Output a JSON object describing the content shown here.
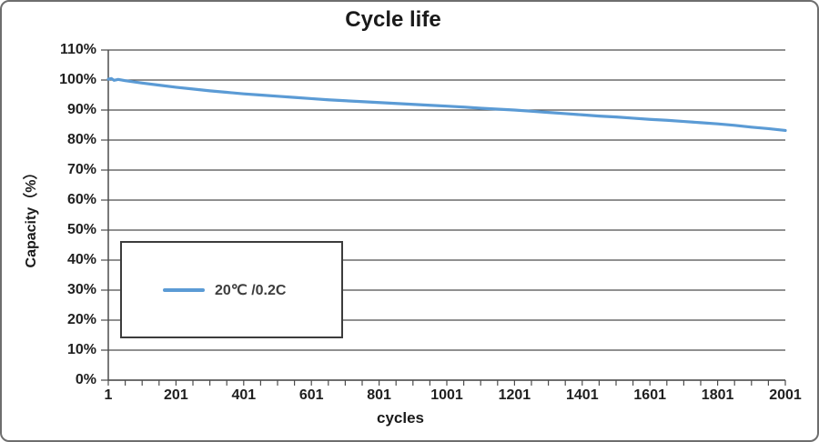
{
  "window": {
    "background": "#ffffff",
    "border_color": "#6e6e6e"
  },
  "chart_data": {
    "type": "line",
    "title": "Cycle life",
    "xlabel": "cycles",
    "ylabel": "Capacity（%）",
    "xlim": [
      1,
      2001
    ],
    "ylim": [
      0,
      110
    ],
    "x_tick_values": [
      1,
      201,
      401,
      601,
      801,
      1001,
      1201,
      1401,
      1601,
      1801,
      2001
    ],
    "x_tick_labels": [
      "1",
      "201",
      "401",
      "601",
      "801",
      "1001",
      "1201",
      "1401",
      "1601",
      "1801",
      "2001"
    ],
    "x_minor_tick_step": 50,
    "y_tick_values": [
      0,
      10,
      20,
      30,
      40,
      50,
      60,
      70,
      80,
      90,
      100,
      110
    ],
    "y_tick_labels": [
      "0%",
      "10%",
      "20%",
      "30%",
      "40%",
      "50%",
      "60%",
      "70%",
      "80%",
      "90%",
      "100%",
      "110%"
    ],
    "grid": "horizontal",
    "grid_color": "#4d4d4d",
    "axis_color": "#4d4d4d",
    "text_color": "#1f1f1f",
    "legend": {
      "position": "inside-left",
      "border_color": "#3c3c3c",
      "background": "#ffffff"
    },
    "series": [
      {
        "name": "20℃ /0.2C",
        "color": "#5B9BD5",
        "points": [
          [
            1,
            100.3
          ],
          [
            10,
            100.5
          ],
          [
            18,
            99.9
          ],
          [
            30,
            100.2
          ],
          [
            51,
            99.8
          ],
          [
            101,
            99.0
          ],
          [
            151,
            98.3
          ],
          [
            201,
            97.6
          ],
          [
            251,
            97.0
          ],
          [
            301,
            96.4
          ],
          [
            351,
            95.9
          ],
          [
            401,
            95.4
          ],
          [
            451,
            95.0
          ],
          [
            501,
            94.6
          ],
          [
            551,
            94.2
          ],
          [
            601,
            93.8
          ],
          [
            651,
            93.4
          ],
          [
            701,
            93.1
          ],
          [
            751,
            92.8
          ],
          [
            801,
            92.5
          ],
          [
            851,
            92.2
          ],
          [
            901,
            91.9
          ],
          [
            951,
            91.6
          ],
          [
            1001,
            91.3
          ],
          [
            1051,
            91.0
          ],
          [
            1101,
            90.6
          ],
          [
            1151,
            90.3
          ],
          [
            1201,
            90.0
          ],
          [
            1251,
            89.6
          ],
          [
            1301,
            89.2
          ],
          [
            1351,
            88.8
          ],
          [
            1401,
            88.4
          ],
          [
            1451,
            88.0
          ],
          [
            1501,
            87.7
          ],
          [
            1551,
            87.3
          ],
          [
            1601,
            86.9
          ],
          [
            1651,
            86.6
          ],
          [
            1701,
            86.2
          ],
          [
            1751,
            85.8
          ],
          [
            1801,
            85.4
          ],
          [
            1851,
            84.9
          ],
          [
            1901,
            84.3
          ],
          [
            1951,
            83.8
          ],
          [
            2001,
            83.2
          ]
        ]
      }
    ]
  }
}
